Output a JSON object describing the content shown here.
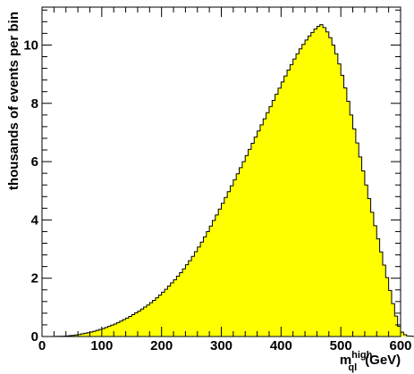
{
  "colors": {
    "fill": "#ffff00",
    "stroke": "#000000",
    "background": "#ffffff"
  },
  "chart_data": {
    "type": "histogram",
    "title": "",
    "xlabel": {
      "main": "m",
      "superscript": "high",
      "subscript": "ql",
      "unit": "(GeV)"
    },
    "ylabel": "thousands of events per bin",
    "xlim": [
      0,
      600
    ],
    "ylim": [
      0,
      11.3
    ],
    "x_ticks": [
      0,
      100,
      200,
      300,
      400,
      500,
      600
    ],
    "y_ticks": [
      0,
      2,
      4,
      6,
      8,
      10
    ],
    "grid": false,
    "legend": "none",
    "bin_width": 5,
    "bin_start": 20,
    "values": [
      0.004,
      0.006,
      0.009,
      0.013,
      0.02,
      0.03,
      0.04,
      0.055,
      0.07,
      0.09,
      0.11,
      0.13,
      0.155,
      0.18,
      0.21,
      0.24,
      0.27,
      0.31,
      0.35,
      0.39,
      0.43,
      0.48,
      0.53,
      0.58,
      0.63,
      0.69,
      0.75,
      0.81,
      0.87,
      0.94,
      1.01,
      1.08,
      1.16,
      1.24,
      1.33,
      1.42,
      1.52,
      1.62,
      1.73,
      1.84,
      1.95,
      2.07,
      2.19,
      2.32,
      2.46,
      2.6,
      2.75,
      2.91,
      3.07,
      3.24,
      3.42,
      3.6,
      3.79,
      3.98,
      4.17,
      4.37,
      4.57,
      4.77,
      4.97,
      5.17,
      5.38,
      5.58,
      5.79,
      6.0,
      6.21,
      6.42,
      6.63,
      6.84,
      7.05,
      7.26,
      7.47,
      7.68,
      7.89,
      8.1,
      8.31,
      8.52,
      8.73,
      8.94,
      9.14,
      9.33,
      9.52,
      9.7,
      9.87,
      10.02,
      10.17,
      10.31,
      10.43,
      10.55,
      10.64,
      10.7,
      10.6,
      10.45,
      10.25,
      10.0,
      9.7,
      9.35,
      8.96,
      8.53,
      8.07,
      7.6,
      7.12,
      6.64,
      6.16,
      5.68,
      5.2,
      4.73,
      4.26,
      3.8,
      3.35,
      2.9,
      2.45,
      2.02,
      1.58,
      1.13,
      0.7,
      0.35,
      0.15,
      0.06,
      0.02,
      0.01,
      0.005,
      0.003,
      0.002,
      0.001,
      0.0005
    ]
  }
}
